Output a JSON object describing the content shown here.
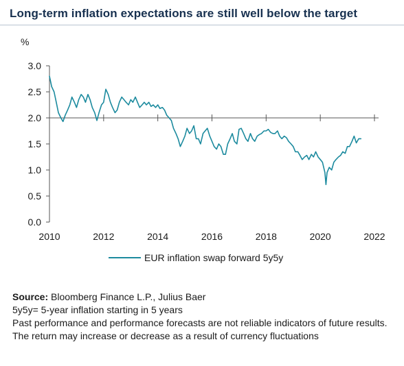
{
  "page": {
    "title": "Long-term inflation expectations are still well below the target"
  },
  "notes": {
    "source_label": "Source:",
    "source_text": " Bloomberg Finance L.P., Julius Baer",
    "definition": "5y5y= 5-year inflation starting in 5 years",
    "disclaimer": "Past performance and performance forecasts are not reliable indicators of future results. The return may increase or decrease as a result of currency fluctuations"
  },
  "colors": {
    "title": "#17304f",
    "series": "#1b8a9e",
    "axis": "#555555"
  },
  "chart_data": {
    "type": "line",
    "title": "Long-term inflation expectations are still well below the target",
    "ylabel": "%",
    "xlabel": "",
    "xlim": [
      2010,
      2022
    ],
    "ylim": [
      0.0,
      3.0
    ],
    "x_ticks": [
      "2010",
      "2012",
      "2014",
      "2016",
      "2018",
      "2020",
      "2022"
    ],
    "y_ticks": [
      "0.0",
      "0.5",
      "1.0",
      "1.5",
      "2.0",
      "2.5",
      "3.0"
    ],
    "legend_position": "bottom",
    "grid": false,
    "series": [
      {
        "name": "EUR inflation swap forward 5y5y",
        "x": [
          2010.0,
          2010.08,
          2010.17,
          2010.25,
          2010.33,
          2010.42,
          2010.5,
          2010.58,
          2010.67,
          2010.75,
          2010.83,
          2010.92,
          2011.0,
          2011.08,
          2011.17,
          2011.25,
          2011.33,
          2011.42,
          2011.5,
          2011.58,
          2011.67,
          2011.75,
          2011.83,
          2011.92,
          2012.0,
          2012.08,
          2012.17,
          2012.25,
          2012.33,
          2012.42,
          2012.5,
          2012.58,
          2012.67,
          2012.75,
          2012.83,
          2012.92,
          2013.0,
          2013.08,
          2013.17,
          2013.25,
          2013.33,
          2013.42,
          2013.5,
          2013.58,
          2013.67,
          2013.75,
          2013.83,
          2013.92,
          2014.0,
          2014.08,
          2014.17,
          2014.25,
          2014.33,
          2014.42,
          2014.5,
          2014.58,
          2014.67,
          2014.75,
          2014.83,
          2014.92,
          2015.0,
          2015.08,
          2015.17,
          2015.25,
          2015.33,
          2015.42,
          2015.5,
          2015.58,
          2015.67,
          2015.75,
          2015.83,
          2015.92,
          2016.0,
          2016.08,
          2016.17,
          2016.25,
          2016.33,
          2016.42,
          2016.5,
          2016.58,
          2016.67,
          2016.75,
          2016.83,
          2016.92,
          2017.0,
          2017.08,
          2017.17,
          2017.25,
          2017.33,
          2017.42,
          2017.5,
          2017.58,
          2017.67,
          2017.75,
          2017.83,
          2017.92,
          2018.0,
          2018.08,
          2018.17,
          2018.25,
          2018.33,
          2018.42,
          2018.5,
          2018.58,
          2018.67,
          2018.75,
          2018.83,
          2018.92,
          2019.0,
          2019.08,
          2019.17,
          2019.25,
          2019.33,
          2019.42,
          2019.5,
          2019.58,
          2019.67,
          2019.75,
          2019.83,
          2019.92,
          2020.0,
          2020.08,
          2020.17,
          2020.21,
          2020.25,
          2020.33,
          2020.42,
          2020.5,
          2020.58,
          2020.67,
          2020.75,
          2020.83,
          2020.92,
          2021.0,
          2021.08,
          2021.17,
          2021.25,
          2021.33,
          2021.42,
          2021.5
        ],
        "values": [
          2.8,
          2.6,
          2.5,
          2.3,
          2.1,
          2.0,
          1.93,
          2.05,
          2.15,
          2.25,
          2.4,
          2.3,
          2.2,
          2.35,
          2.45,
          2.4,
          2.3,
          2.45,
          2.35,
          2.2,
          2.1,
          1.95,
          2.1,
          2.25,
          2.3,
          2.55,
          2.45,
          2.3,
          2.2,
          2.1,
          2.15,
          2.3,
          2.4,
          2.35,
          2.3,
          2.25,
          2.35,
          2.3,
          2.4,
          2.3,
          2.2,
          2.25,
          2.3,
          2.25,
          2.3,
          2.22,
          2.25,
          2.2,
          2.25,
          2.18,
          2.2,
          2.15,
          2.05,
          2.0,
          1.95,
          1.8,
          1.7,
          1.6,
          1.45,
          1.55,
          1.65,
          1.8,
          1.7,
          1.75,
          1.85,
          1.6,
          1.6,
          1.5,
          1.7,
          1.75,
          1.8,
          1.65,
          1.55,
          1.45,
          1.4,
          1.5,
          1.45,
          1.3,
          1.3,
          1.5,
          1.6,
          1.7,
          1.55,
          1.5,
          1.78,
          1.8,
          1.7,
          1.6,
          1.55,
          1.7,
          1.6,
          1.55,
          1.65,
          1.68,
          1.7,
          1.75,
          1.75,
          1.78,
          1.72,
          1.7,
          1.7,
          1.75,
          1.65,
          1.6,
          1.65,
          1.62,
          1.55,
          1.5,
          1.45,
          1.35,
          1.35,
          1.28,
          1.2,
          1.25,
          1.28,
          1.2,
          1.3,
          1.25,
          1.35,
          1.25,
          1.2,
          1.15,
          0.95,
          0.72,
          0.95,
          1.05,
          1.0,
          1.15,
          1.2,
          1.25,
          1.28,
          1.35,
          1.32,
          1.45,
          1.45,
          1.55,
          1.65,
          1.52,
          1.6,
          1.6
        ]
      }
    ]
  }
}
